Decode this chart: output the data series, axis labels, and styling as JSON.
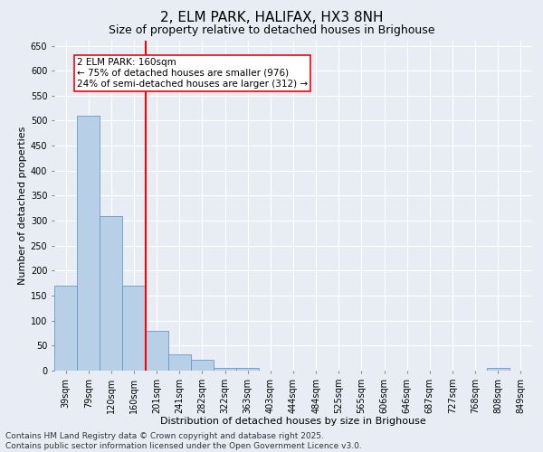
{
  "title": "2, ELM PARK, HALIFAX, HX3 8NH",
  "subtitle": "Size of property relative to detached houses in Brighouse",
  "xlabel": "Distribution of detached houses by size in Brighouse",
  "ylabel": "Number of detached properties",
  "categories": [
    "39sqm",
    "79sqm",
    "120sqm",
    "160sqm",
    "201sqm",
    "241sqm",
    "282sqm",
    "322sqm",
    "363sqm",
    "403sqm",
    "444sqm",
    "484sqm",
    "525sqm",
    "565sqm",
    "606sqm",
    "646sqm",
    "687sqm",
    "727sqm",
    "768sqm",
    "808sqm",
    "849sqm"
  ],
  "values": [
    170,
    510,
    310,
    170,
    80,
    33,
    22,
    5,
    5,
    0,
    0,
    0,
    0,
    0,
    0,
    0,
    0,
    0,
    0,
    5,
    0
  ],
  "bar_color": "#b8cfe8",
  "bar_edge_color": "#6699cc",
  "vline_index": 3,
  "vline_color": "red",
  "annotation_text": "2 ELM PARK: 160sqm\n← 75% of detached houses are smaller (976)\n24% of semi-detached houses are larger (312) →",
  "annotation_box_color": "white",
  "annotation_box_edge": "red",
  "ylim": [
    0,
    660
  ],
  "yticks": [
    0,
    50,
    100,
    150,
    200,
    250,
    300,
    350,
    400,
    450,
    500,
    550,
    600,
    650
  ],
  "bg_color": "#e8edf5",
  "grid_color": "white",
  "footer_line1": "Contains HM Land Registry data © Crown copyright and database right 2025.",
  "footer_line2": "Contains public sector information licensed under the Open Government Licence v3.0.",
  "title_fontsize": 11,
  "subtitle_fontsize": 9,
  "axis_label_fontsize": 8,
  "tick_fontsize": 7,
  "annotation_fontsize": 7.5,
  "footer_fontsize": 6.5
}
